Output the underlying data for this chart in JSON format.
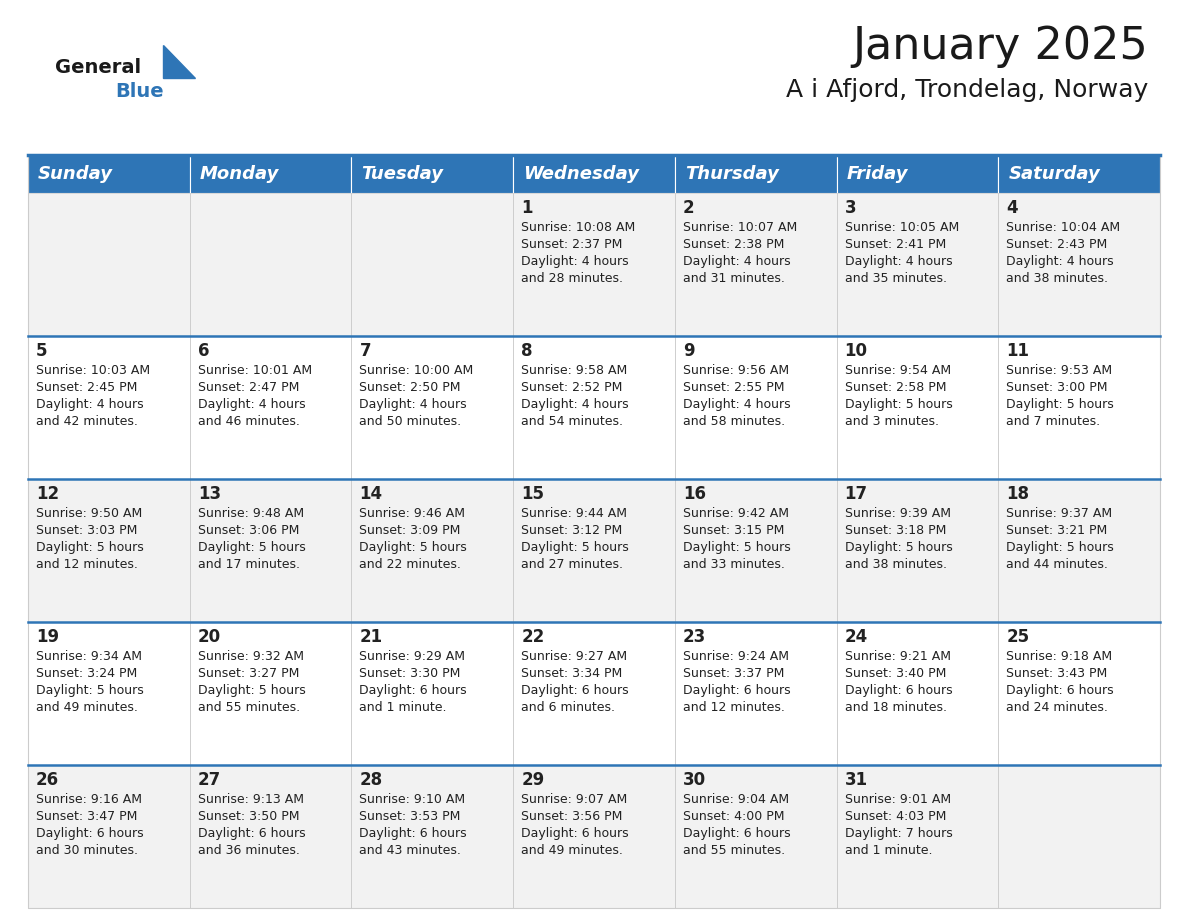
{
  "title": "January 2025",
  "subtitle": "A i Afjord, Trondelag, Norway",
  "header_color": "#2E75B6",
  "header_text_color": "#FFFFFF",
  "cell_bg_even": "#F2F2F2",
  "cell_bg_odd": "#FFFFFF",
  "row_sep_color": "#2E75B6",
  "grid_color": "#CCCCCC",
  "day_names": [
    "Sunday",
    "Monday",
    "Tuesday",
    "Wednesday",
    "Thursday",
    "Friday",
    "Saturday"
  ],
  "title_fontsize": 32,
  "subtitle_fontsize": 18,
  "day_header_fontsize": 13,
  "cell_number_fontsize": 12,
  "cell_text_fontsize": 9,
  "logo_general_color": "#1a1a1a",
  "logo_blue_color": "#2E75B6",
  "calendar_data": [
    [
      null,
      null,
      null,
      {
        "day": 1,
        "sunrise": "10:08 AM",
        "sunset": "2:37 PM",
        "daylight": "4 hours and 28 minutes."
      },
      {
        "day": 2,
        "sunrise": "10:07 AM",
        "sunset": "2:38 PM",
        "daylight": "4 hours and 31 minutes."
      },
      {
        "day": 3,
        "sunrise": "10:05 AM",
        "sunset": "2:41 PM",
        "daylight": "4 hours and 35 minutes."
      },
      {
        "day": 4,
        "sunrise": "10:04 AM",
        "sunset": "2:43 PM",
        "daylight": "4 hours and 38 minutes."
      }
    ],
    [
      {
        "day": 5,
        "sunrise": "10:03 AM",
        "sunset": "2:45 PM",
        "daylight": "4 hours and 42 minutes."
      },
      {
        "day": 6,
        "sunrise": "10:01 AM",
        "sunset": "2:47 PM",
        "daylight": "4 hours and 46 minutes."
      },
      {
        "day": 7,
        "sunrise": "10:00 AM",
        "sunset": "2:50 PM",
        "daylight": "4 hours and 50 minutes."
      },
      {
        "day": 8,
        "sunrise": "9:58 AM",
        "sunset": "2:52 PM",
        "daylight": "4 hours and 54 minutes."
      },
      {
        "day": 9,
        "sunrise": "9:56 AM",
        "sunset": "2:55 PM",
        "daylight": "4 hours and 58 minutes."
      },
      {
        "day": 10,
        "sunrise": "9:54 AM",
        "sunset": "2:58 PM",
        "daylight": "5 hours and 3 minutes."
      },
      {
        "day": 11,
        "sunrise": "9:53 AM",
        "sunset": "3:00 PM",
        "daylight": "5 hours and 7 minutes."
      }
    ],
    [
      {
        "day": 12,
        "sunrise": "9:50 AM",
        "sunset": "3:03 PM",
        "daylight": "5 hours and 12 minutes."
      },
      {
        "day": 13,
        "sunrise": "9:48 AM",
        "sunset": "3:06 PM",
        "daylight": "5 hours and 17 minutes."
      },
      {
        "day": 14,
        "sunrise": "9:46 AM",
        "sunset": "3:09 PM",
        "daylight": "5 hours and 22 minutes."
      },
      {
        "day": 15,
        "sunrise": "9:44 AM",
        "sunset": "3:12 PM",
        "daylight": "5 hours and 27 minutes."
      },
      {
        "day": 16,
        "sunrise": "9:42 AM",
        "sunset": "3:15 PM",
        "daylight": "5 hours and 33 minutes."
      },
      {
        "day": 17,
        "sunrise": "9:39 AM",
        "sunset": "3:18 PM",
        "daylight": "5 hours and 38 minutes."
      },
      {
        "day": 18,
        "sunrise": "9:37 AM",
        "sunset": "3:21 PM",
        "daylight": "5 hours and 44 minutes."
      }
    ],
    [
      {
        "day": 19,
        "sunrise": "9:34 AM",
        "sunset": "3:24 PM",
        "daylight": "5 hours and 49 minutes."
      },
      {
        "day": 20,
        "sunrise": "9:32 AM",
        "sunset": "3:27 PM",
        "daylight": "5 hours and 55 minutes."
      },
      {
        "day": 21,
        "sunrise": "9:29 AM",
        "sunset": "3:30 PM",
        "daylight": "6 hours and 1 minute."
      },
      {
        "day": 22,
        "sunrise": "9:27 AM",
        "sunset": "3:34 PM",
        "daylight": "6 hours and 6 minutes."
      },
      {
        "day": 23,
        "sunrise": "9:24 AM",
        "sunset": "3:37 PM",
        "daylight": "6 hours and 12 minutes."
      },
      {
        "day": 24,
        "sunrise": "9:21 AM",
        "sunset": "3:40 PM",
        "daylight": "6 hours and 18 minutes."
      },
      {
        "day": 25,
        "sunrise": "9:18 AM",
        "sunset": "3:43 PM",
        "daylight": "6 hours and 24 minutes."
      }
    ],
    [
      {
        "day": 26,
        "sunrise": "9:16 AM",
        "sunset": "3:47 PM",
        "daylight": "6 hours and 30 minutes."
      },
      {
        "day": 27,
        "sunrise": "9:13 AM",
        "sunset": "3:50 PM",
        "daylight": "6 hours and 36 minutes."
      },
      {
        "day": 28,
        "sunrise": "9:10 AM",
        "sunset": "3:53 PM",
        "daylight": "6 hours and 43 minutes."
      },
      {
        "day": 29,
        "sunrise": "9:07 AM",
        "sunset": "3:56 PM",
        "daylight": "6 hours and 49 minutes."
      },
      {
        "day": 30,
        "sunrise": "9:04 AM",
        "sunset": "4:00 PM",
        "daylight": "6 hours and 55 minutes."
      },
      {
        "day": 31,
        "sunrise": "9:01 AM",
        "sunset": "4:03 PM",
        "daylight": "7 hours and 1 minute."
      },
      null
    ]
  ]
}
